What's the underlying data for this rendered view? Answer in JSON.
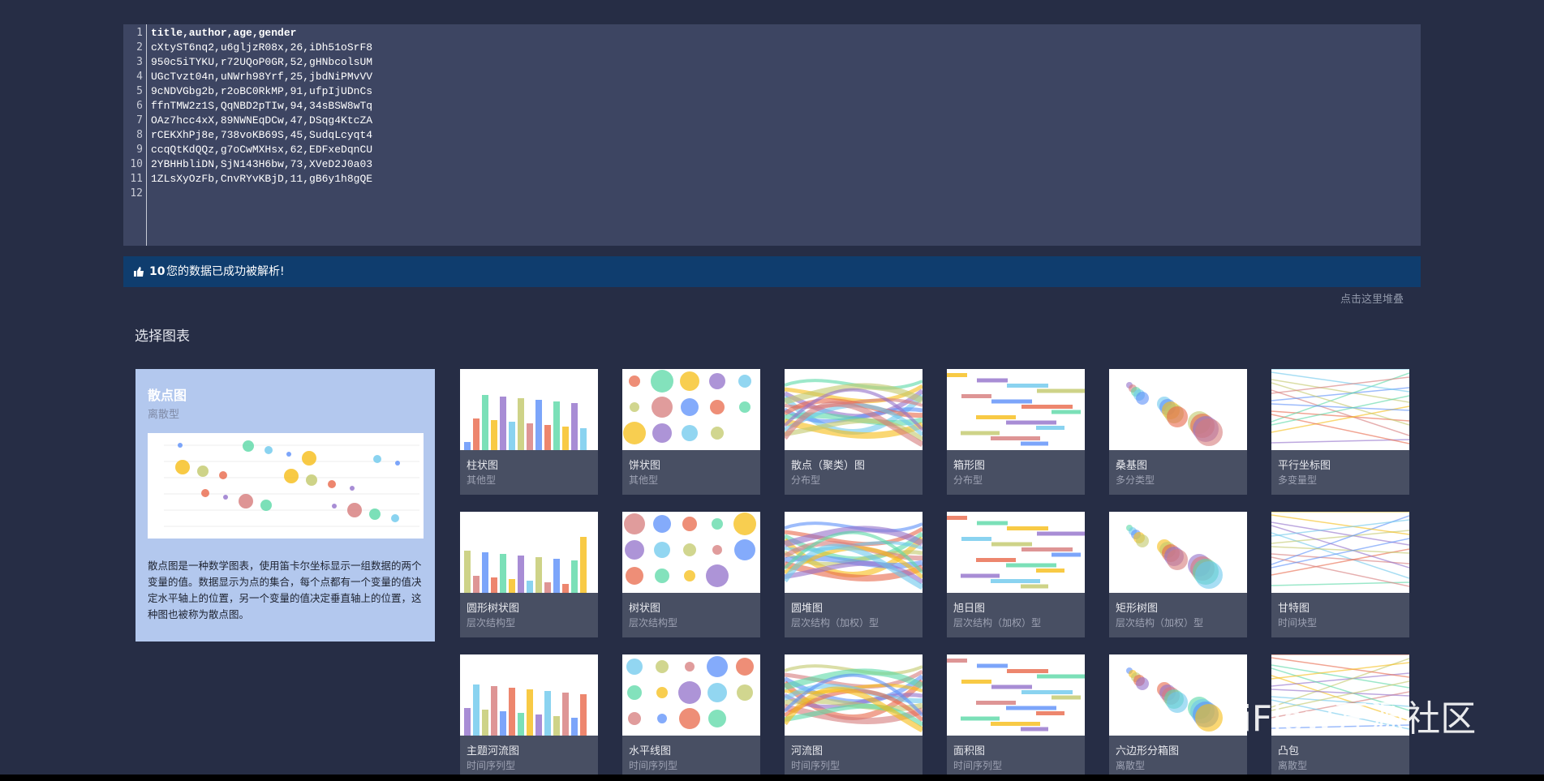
{
  "editor": {
    "line_numbers": [
      1,
      2,
      3,
      4,
      5,
      6,
      7,
      8,
      9,
      10,
      11,
      12
    ],
    "lines": [
      "title,author,age,gender",
      "cXtyST6nq2,u6gljzR08x,26,iDh51oSrF8",
      "950c5iTYKU,r72UQoP0GR,52,gHNbcolsUM",
      "UGcTvzt04n,uNWrh98Yrf,25,jbdNiPMvVV",
      "9cNDVGbg2b,r2oBC0RkMP,91,ufpIjUDnCs",
      "ffnTMW2z1S,QqNBD2pTIw,94,34sBSW8wTq",
      "OAz7hcc4xX,89NWNEqDCw,47,DSqg4KtcZA",
      "rCEKXhPj8e,738voKB69S,45,SudqLcyqt4",
      "ccqQtKdQQz,g7oCwMXHsx,62,EDFxeDqnCU",
      "2YBHHbliDN,SjN143H6bw,73,XVeD2J0a03",
      "1ZLsXyOzFb,CnvRYvKBjD,11,gB6y1h8gQE"
    ]
  },
  "banner": {
    "count": 10,
    "message": "您的数据已成功被解析!"
  },
  "collapse_link": "点击这里堆叠",
  "section_title": "选择图表",
  "selected": {
    "title": "散点图",
    "subtitle": "离散型",
    "description": "散点图是一种数学图表，使用笛卡尔坐标显示一组数据的两个变量的值。数据显示为点的集合，每个点都有一个变量的值决定水平轴上的位置，另一个变量的值决定垂直轴上的位置，这种图也被称为散点图。"
  },
  "charts": [
    {
      "title": "柱状图",
      "subtitle": "其他型"
    },
    {
      "title": "饼状图",
      "subtitle": "其他型"
    },
    {
      "title": "散点（聚类）图",
      "subtitle": "分布型"
    },
    {
      "title": "箱形图",
      "subtitle": "分布型"
    },
    {
      "title": "桑基图",
      "subtitle": "多分类型"
    },
    {
      "title": "平行坐标图",
      "subtitle": "多变量型"
    },
    {
      "title": "圆形树状图",
      "subtitle": "层次结构型"
    },
    {
      "title": "树状图",
      "subtitle": "层次结构型"
    },
    {
      "title": "圆堆图",
      "subtitle": "层次结构（加权）型"
    },
    {
      "title": "旭日图",
      "subtitle": "层次结构（加权）型"
    },
    {
      "title": "矩形树图",
      "subtitle": "层次结构（加权）型"
    },
    {
      "title": "甘特图",
      "subtitle": "时间块型"
    },
    {
      "title": "主题河流图",
      "subtitle": "时间序列型"
    },
    {
      "title": "水平线图",
      "subtitle": "时间序列型"
    },
    {
      "title": "河流图",
      "subtitle": "时间序列型"
    },
    {
      "title": "面积图",
      "subtitle": "时间序列型"
    },
    {
      "title": "六边形分箱图",
      "subtitle": "离散型"
    },
    {
      "title": "凸包",
      "subtitle": "离散型"
    }
  ],
  "watermark": "PiFlow开源社区"
}
